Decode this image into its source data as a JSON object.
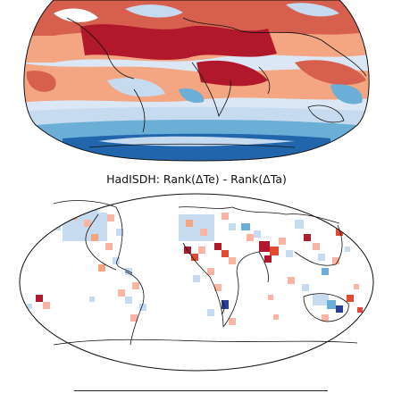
{
  "figure": {
    "panels": [
      {
        "id": "top",
        "title": "",
        "projection": "robinson",
        "field": "Rank difference (reanalysis, gridded, cropped at top)",
        "colors": {
          "strong_warm": "#b2182b",
          "warm": "#d6604d",
          "light_warm": "#f4a582",
          "neutral": "#f7f7f7",
          "light_cool": "#c6dbef",
          "cool": "#6baed6",
          "strong_cool": "#2166ac",
          "coast": "#111111"
        }
      },
      {
        "id": "bottom",
        "title": "HadISDH: Rank(ΔTe) - Rank(ΔTa)",
        "projection": "robinson",
        "field": "Station grid boxes (sparse)",
        "colors": {
          "strong_warm": "#b2182b",
          "warm": "#e34a33",
          "light_warm": "#fbb4a3",
          "light_cool": "#c6dbef",
          "cool": "#6baed6",
          "strong_cool": "#2c3d96",
          "coast": "#111111"
        }
      }
    ]
  }
}
